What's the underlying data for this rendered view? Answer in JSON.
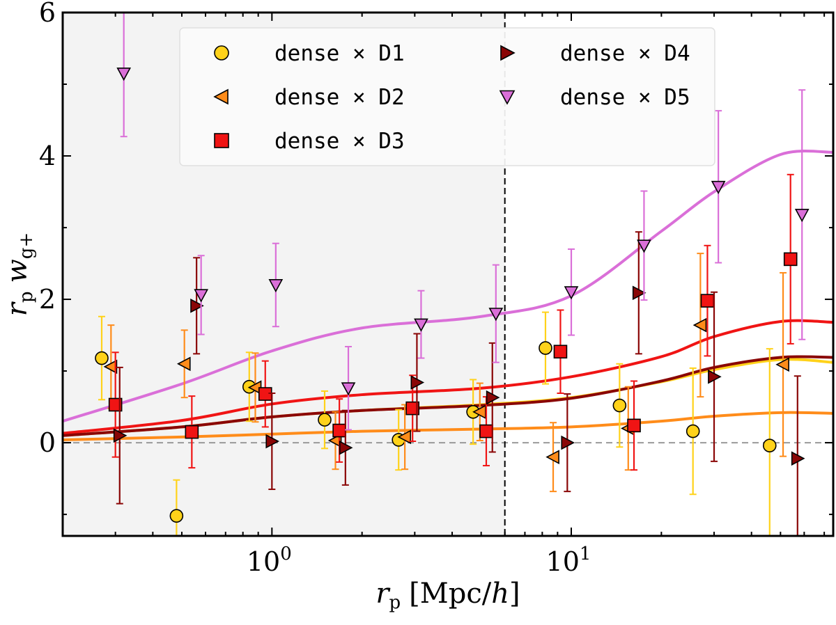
{
  "chart_data": {
    "type": "scatter",
    "xscale": "log",
    "xlim": [
      0.2,
      75
    ],
    "ylim": [
      -1.3,
      6
    ],
    "xlabel": "r_p [Mpc/h]",
    "ylabel": "r_p w_g+",
    "xlabel_parts": {
      "main": "r",
      "sub": "p",
      "unit": "[Mpc/",
      "unit_italic": "h",
      "unit_close": "]"
    },
    "ylabel_parts": {
      "r": "r",
      "r_sub": "p",
      "w": "w",
      "w_sub": "g+"
    },
    "x_tick_labels": [
      {
        "value": 1,
        "base": "10",
        "exp": "0"
      },
      {
        "value": 10,
        "base": "10",
        "exp": "1"
      }
    ],
    "y_ticks": [
      0,
      2,
      4,
      6
    ],
    "y_tick_labels": [
      "0",
      "2",
      "4",
      "6"
    ],
    "scale_cut": 6,
    "shaded_region": [
      0.2,
      6
    ],
    "zero_line": 0,
    "legend": {
      "placement": "top-center",
      "columns": 2
    },
    "series": [
      {
        "name": "dense × D1",
        "marker": "circle",
        "color": "#FFD21A",
        "line_color": "#FFD21A",
        "x": [
          0.27,
          0.48,
          0.84,
          1.5,
          2.65,
          4.7,
          8.2,
          14.5,
          25.5,
          46
        ],
        "y": [
          1.18,
          -1.02,
          0.78,
          0.32,
          0.04,
          0.43,
          1.32,
          0.52,
          0.16,
          -0.04
        ],
        "err": [
          0.58,
          0.5,
          0.48,
          0.4,
          0.42,
          0.45,
          0.5,
          0.58,
          0.88,
          1.35
        ],
        "model_x": [
          0.2,
          0.5,
          1,
          2,
          5,
          10,
          20,
          30,
          50,
          75
        ],
        "model_y": [
          0.1,
          0.22,
          0.36,
          0.45,
          0.53,
          0.63,
          0.85,
          1.02,
          1.16,
          1.12
        ]
      },
      {
        "name": "dense × D2",
        "marker": "triangle-left",
        "color": "#FF8C1A",
        "line_color": "#FF8C1A",
        "x": [
          0.29,
          0.51,
          0.88,
          1.63,
          2.78,
          4.95,
          8.7,
          15.5,
          27,
          51
        ],
        "y": [
          1.06,
          1.1,
          0.77,
          0.03,
          0.08,
          0.43,
          -0.2,
          0.2,
          1.64,
          1.09
        ],
        "err": [
          0.58,
          0.47,
          0.48,
          0.4,
          0.45,
          0.4,
          0.48,
          0.58,
          1.0,
          1.28
        ],
        "model_x": [
          0.2,
          0.5,
          1,
          2,
          5,
          10,
          20,
          30,
          50,
          75
        ],
        "model_y": [
          0.04,
          0.08,
          0.12,
          0.16,
          0.19,
          0.22,
          0.3,
          0.37,
          0.42,
          0.41
        ]
      },
      {
        "name": "dense × D3",
        "marker": "square",
        "color": "#F01414",
        "line_color": "#F01414",
        "x": [
          0.3,
          0.54,
          0.95,
          1.68,
          2.95,
          5.2,
          9.2,
          16.2,
          28.5,
          54
        ],
        "y": [
          0.53,
          0.15,
          0.68,
          0.17,
          0.48,
          0.16,
          1.27,
          0.24,
          1.98,
          2.56
        ],
        "err": [
          0.73,
          0.5,
          0.46,
          0.44,
          0.46,
          0.48,
          0.58,
          0.62,
          0.77,
          1.18
        ],
        "model_x": [
          0.2,
          0.5,
          1,
          2,
          5,
          10,
          20,
          30,
          50,
          75
        ],
        "model_y": [
          0.13,
          0.31,
          0.54,
          0.67,
          0.76,
          0.92,
          1.2,
          1.48,
          1.69,
          1.68
        ]
      },
      {
        "name": "dense × D4",
        "marker": "triangle-right",
        "color": "#8A0606",
        "line_color": "#8A0606",
        "x": [
          0.31,
          0.56,
          1.0,
          1.76,
          3.05,
          5.45,
          9.7,
          16.8,
          30,
          57
        ],
        "y": [
          0.1,
          1.91,
          0.02,
          -0.07,
          0.84,
          0.63,
          0.0,
          2.09,
          0.92,
          -0.22
        ],
        "err": [
          0.95,
          0.67,
          0.67,
          0.52,
          0.68,
          0.76,
          0.68,
          0.85,
          1.18,
          1.15
        ],
        "model_x": [
          0.2,
          0.5,
          1,
          2,
          5,
          10,
          20,
          30,
          50,
          75
        ],
        "model_y": [
          0.1,
          0.22,
          0.36,
          0.45,
          0.52,
          0.62,
          0.86,
          1.05,
          1.19,
          1.19
        ]
      },
      {
        "name": "dense × D5",
        "marker": "triangle-down",
        "color": "#DA6FD8",
        "line_color": "#DA6FD8",
        "x": [
          0.32,
          0.58,
          1.03,
          1.8,
          3.15,
          5.6,
          10,
          17.5,
          31,
          59
        ],
        "y": [
          5.15,
          2.06,
          2.2,
          0.76,
          1.65,
          1.8,
          2.1,
          2.75,
          3.57,
          3.18
        ],
        "err": [
          0.88,
          0.55,
          0.58,
          0.58,
          0.47,
          0.68,
          0.6,
          0.76,
          1.06,
          1.74
        ],
        "model_x": [
          0.2,
          0.5,
          1,
          2,
          5,
          10,
          20,
          30,
          50,
          75
        ],
        "model_y": [
          0.3,
          0.82,
          1.28,
          1.6,
          1.76,
          2.05,
          2.95,
          3.5,
          4.02,
          4.05
        ]
      }
    ]
  }
}
